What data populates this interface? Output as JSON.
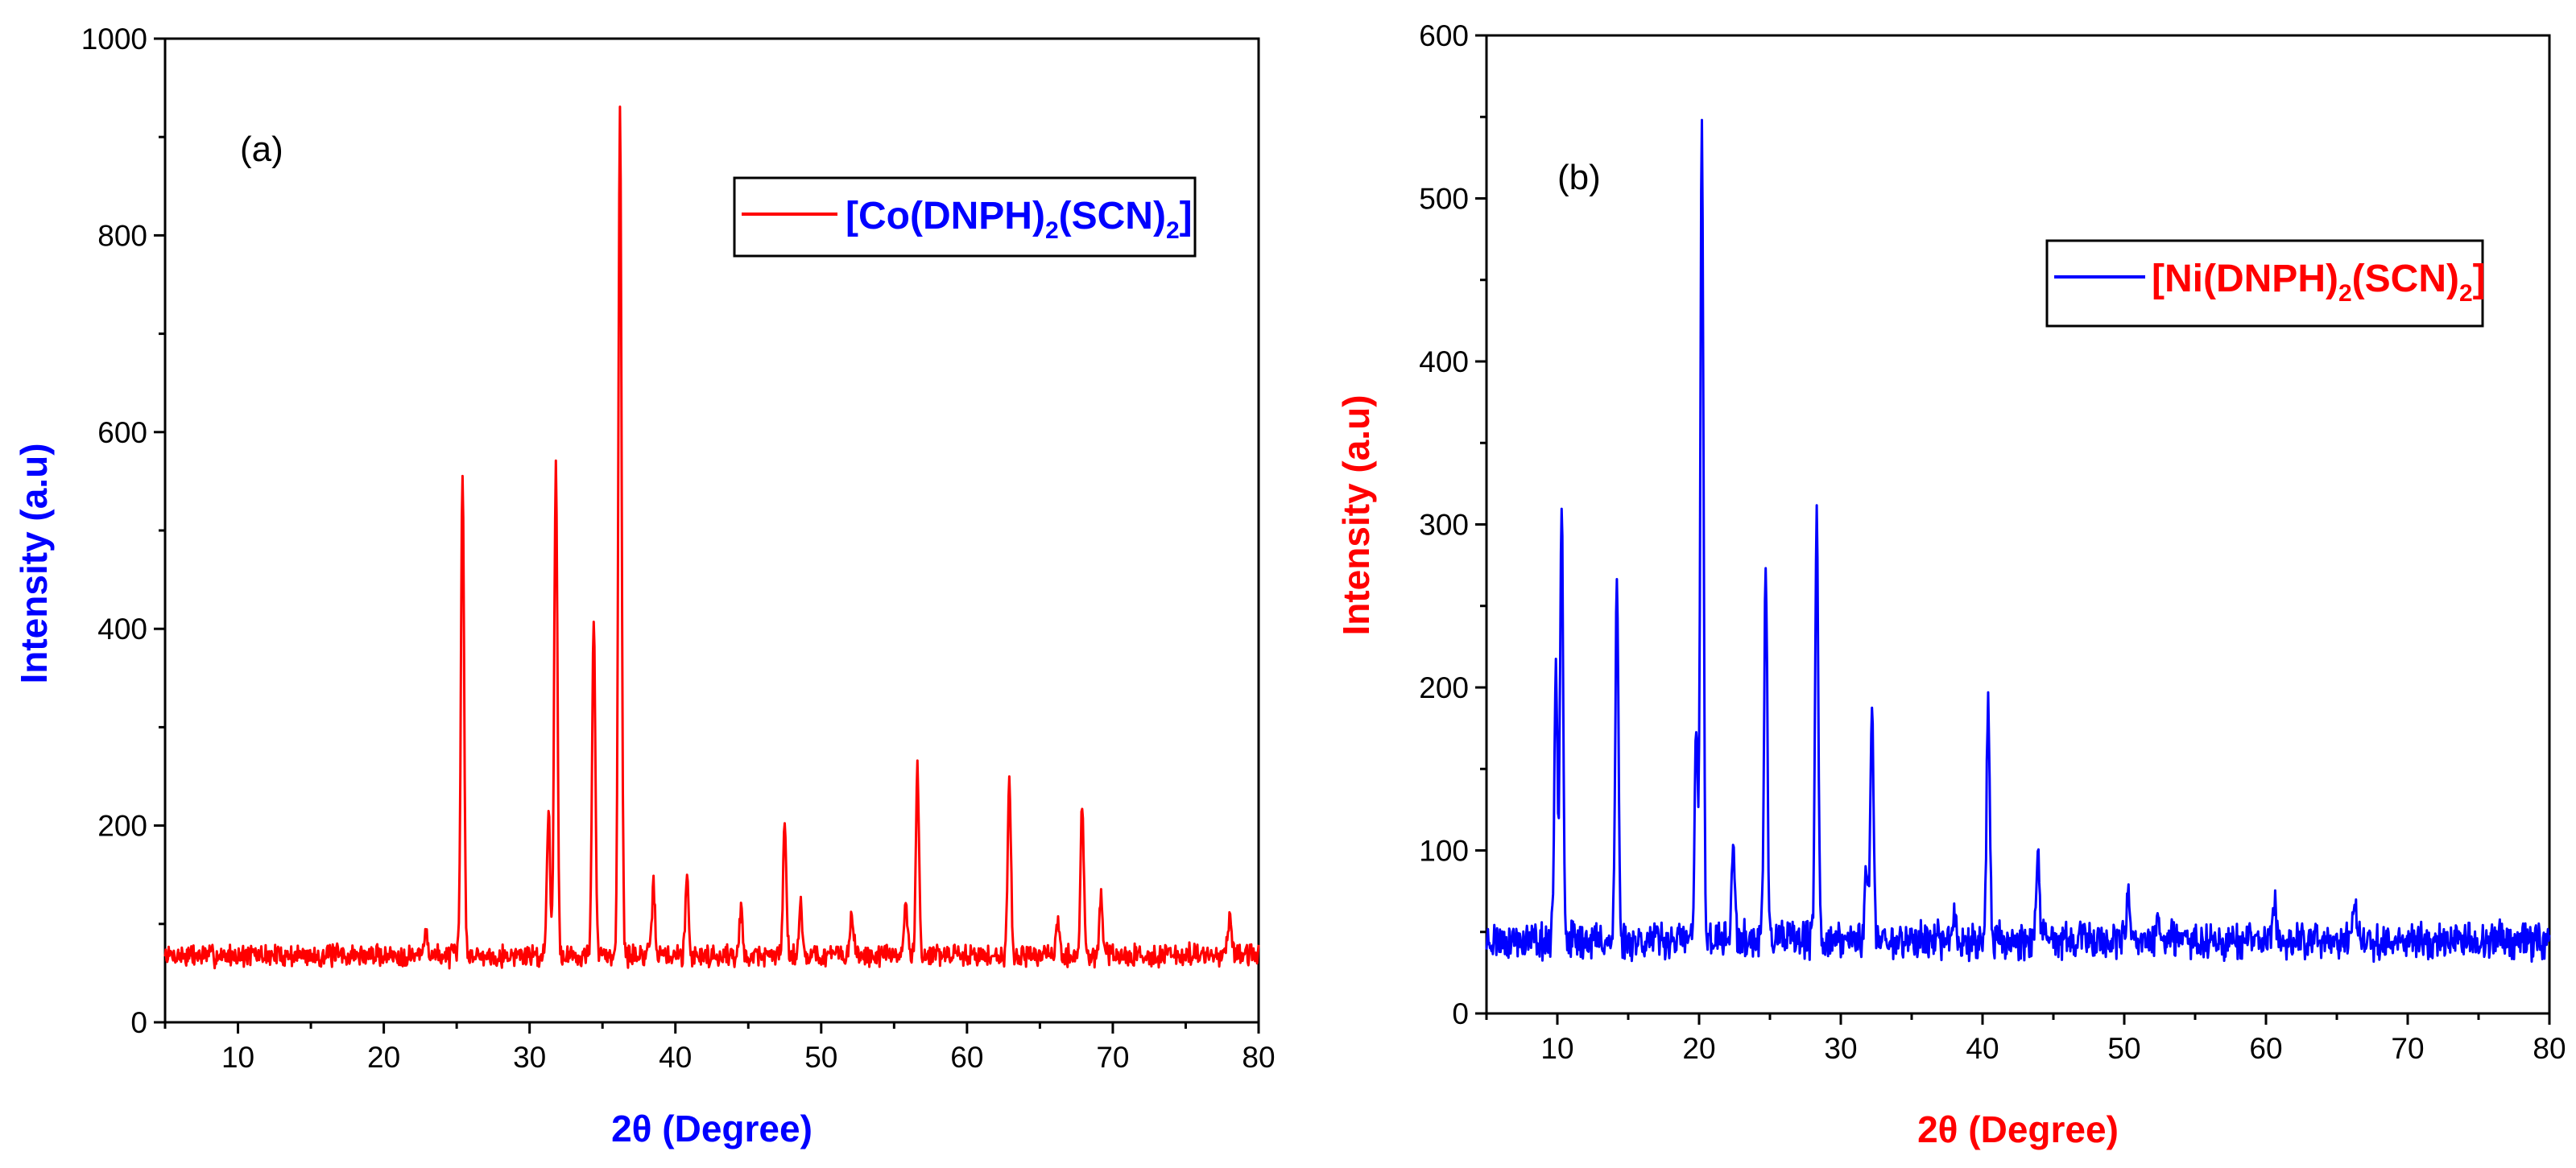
{
  "chart_data": [
    {
      "type": "line",
      "panel_label": "(a)",
      "xlabel": "2θ (Degree)",
      "ylabel": "Intensity (a.u)",
      "xlim": [
        5,
        80
      ],
      "ylim": [
        0,
        1000
      ],
      "xticks": [
        10,
        20,
        30,
        40,
        50,
        60,
        70,
        80
      ],
      "yticks": [
        0,
        200,
        400,
        600,
        800,
        1000
      ],
      "legend": {
        "position": "top-right",
        "main": "[Co(DNPH)",
        "sub1": "2",
        "mid": "(SCN)",
        "sub2": "2",
        "close": "]"
      },
      "colors": {
        "line": "#ff0000",
        "xlabel": "#0000ff",
        "ylabel": "#0000ff",
        "legend_text": "#0000ff"
      },
      "series": [
        {
          "name": "[Co(DNPH)2(SCN)2]",
          "baseline": 68,
          "noise": 9,
          "peaks": [
            {
              "x": 22.9,
              "y": 95
            },
            {
              "x": 25.4,
              "y": 555
            },
            {
              "x": 31.3,
              "y": 220
            },
            {
              "x": 31.8,
              "y": 565
            },
            {
              "x": 34.4,
              "y": 408
            },
            {
              "x": 36.2,
              "y": 938
            },
            {
              "x": 38.5,
              "y": 138
            },
            {
              "x": 40.8,
              "y": 148
            },
            {
              "x": 44.5,
              "y": 112
            },
            {
              "x": 47.5,
              "y": 210
            },
            {
              "x": 48.6,
              "y": 122
            },
            {
              "x": 52.1,
              "y": 112
            },
            {
              "x": 55.8,
              "y": 122
            },
            {
              "x": 56.6,
              "y": 258
            },
            {
              "x": 62.9,
              "y": 250
            },
            {
              "x": 66.2,
              "y": 102
            },
            {
              "x": 67.9,
              "y": 220
            },
            {
              "x": 69.2,
              "y": 130
            },
            {
              "x": 78.0,
              "y": 108
            }
          ]
        }
      ]
    },
    {
      "type": "line",
      "panel_label": "(b)",
      "xlabel": "2θ (Degree)",
      "ylabel": "Intensity (a.u)",
      "xlim": [
        5,
        80
      ],
      "ylim": [
        0,
        600
      ],
      "xticks": [
        10,
        20,
        30,
        40,
        50,
        60,
        70,
        80
      ],
      "yticks": [
        0,
        100,
        200,
        300,
        400,
        500,
        600
      ],
      "legend": {
        "position": "top-right",
        "main": "[Ni(DNPH)",
        "sub1": "2",
        "mid": "(SCN)",
        "sub2": "2",
        "close": "]"
      },
      "colors": {
        "line": "#0000ff",
        "xlabel": "#ff0000",
        "ylabel": "#ff0000",
        "legend_text": "#ff0000"
      },
      "series": [
        {
          "name": "[Ni(DNPH)2(SCN)2]",
          "baseline": 45,
          "noise": 9,
          "peaks": [
            {
              "x": 9.9,
              "y": 215
            },
            {
              "x": 10.3,
              "y": 316
            },
            {
              "x": 14.2,
              "y": 264
            },
            {
              "x": 19.8,
              "y": 170
            },
            {
              "x": 20.2,
              "y": 545
            },
            {
              "x": 22.4,
              "y": 104
            },
            {
              "x": 24.7,
              "y": 280
            },
            {
              "x": 28.3,
              "y": 306
            },
            {
              "x": 31.8,
              "y": 95
            },
            {
              "x": 32.2,
              "y": 186
            },
            {
              "x": 38.0,
              "y": 62
            },
            {
              "x": 40.4,
              "y": 194
            },
            {
              "x": 43.9,
              "y": 98
            },
            {
              "x": 50.3,
              "y": 70
            },
            {
              "x": 52.4,
              "y": 62
            },
            {
              "x": 60.6,
              "y": 67
            },
            {
              "x": 66.3,
              "y": 70
            },
            {
              "x": 78.2,
              "y": 50
            }
          ]
        }
      ]
    }
  ]
}
